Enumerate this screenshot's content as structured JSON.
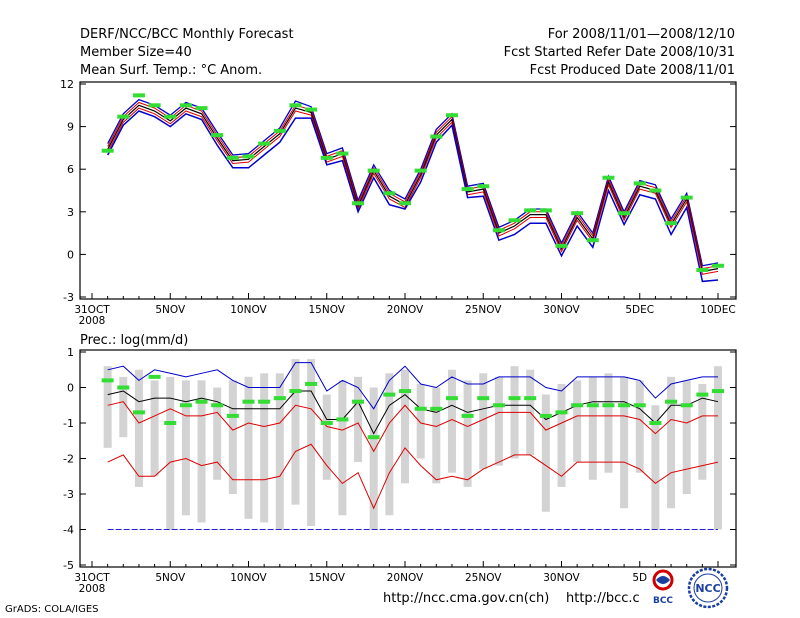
{
  "header": {
    "left": [
      "DERF/NCC/BCC Monthly Forecast",
      "Member Size=40",
      "Mean Surf. Temp.: °C Anom."
    ],
    "right": [
      "For 2008/11/01—2008/12/10",
      "Fcst Started Refer Date 2008/10/31",
      "Fcst Produced Date 2008/11/01"
    ]
  },
  "footer": {
    "credit": "GrADS: COLA/IGES",
    "url1": "http://ncc.cma.gov.cn(ch)",
    "url2": "http://bcc.c"
  },
  "logos": {
    "bcc": "BCC",
    "ncc": "NCC"
  },
  "colors": {
    "mean": "#000000",
    "blue": "#0000cc",
    "red": "#dd0000",
    "green": "#33dd33",
    "box": "#d3d3d3",
    "ref": "#2222cc"
  },
  "chart_data": [
    {
      "type": "line",
      "title": "Mean Surf. Temp.: °C Anom.",
      "x_labels": [
        "31OCT",
        "5NOV",
        "10NOV",
        "15NOV",
        "20NOV",
        "25NOV",
        "30NOV",
        "5DEC",
        "10DEC"
      ],
      "x_label_days": [
        0,
        5,
        10,
        15,
        20,
        25,
        30,
        35,
        40
      ],
      "year_label": "2008",
      "ylim": [
        -3,
        12
      ],
      "yticks": [
        "-3",
        "0",
        "3",
        "6",
        "9",
        "12"
      ],
      "x": [
        1,
        2,
        3,
        4,
        5,
        6,
        7,
        8,
        9,
        10,
        11,
        12,
        13,
        14,
        15,
        16,
        17,
        18,
        19,
        20,
        21,
        22,
        23,
        24,
        25,
        26,
        27,
        28,
        29,
        30,
        31,
        32,
        33,
        34,
        35,
        36,
        37,
        38,
        39,
        40
      ],
      "series": [
        {
          "name": "upper",
          "color": "#0000cc",
          "values": [
            7.8,
            9.9,
            10.9,
            10.5,
            9.8,
            10.7,
            10.3,
            8.6,
            7.0,
            7.1,
            8.0,
            8.9,
            10.8,
            10.4,
            7.1,
            7.5,
            3.8,
            6.3,
            4.5,
            3.9,
            6.0,
            8.8,
            9.9,
            4.8,
            5.0,
            1.9,
            2.4,
            3.2,
            3.2,
            0.8,
            3.0,
            1.5,
            5.5,
            3.0,
            5.2,
            4.9,
            2.5,
            4.3,
            -0.8,
            -0.6
          ]
        },
        {
          "name": "r1",
          "color": "#dd0000",
          "values": [
            7.6,
            9.7,
            10.7,
            10.3,
            9.6,
            10.5,
            10.1,
            8.4,
            6.8,
            6.9,
            7.8,
            8.7,
            10.5,
            10.2,
            6.9,
            7.3,
            3.6,
            6.1,
            4.3,
            3.7,
            5.8,
            8.6,
            9.7,
            4.6,
            4.8,
            1.7,
            2.2,
            3.0,
            3.0,
            0.6,
            2.8,
            1.3,
            5.3,
            2.8,
            5.0,
            4.7,
            2.3,
            4.1,
            -1.0,
            -0.8
          ]
        },
        {
          "name": "mean",
          "color": "#000000",
          "values": [
            7.4,
            9.5,
            10.5,
            10.1,
            9.4,
            10.3,
            9.9,
            8.2,
            6.6,
            6.7,
            7.6,
            8.5,
            10.3,
            10.0,
            6.7,
            7.1,
            3.4,
            5.9,
            4.1,
            3.5,
            5.6,
            8.4,
            9.5,
            4.4,
            4.6,
            1.5,
            2.0,
            2.8,
            2.8,
            0.4,
            2.6,
            1.1,
            5.1,
            2.6,
            4.8,
            4.5,
            2.1,
            3.9,
            -1.2,
            -1.0
          ]
        },
        {
          "name": "r2",
          "color": "#dd0000",
          "values": [
            7.2,
            9.3,
            10.3,
            9.9,
            9.2,
            10.1,
            9.7,
            8.0,
            6.4,
            6.5,
            7.4,
            8.3,
            10.1,
            9.8,
            6.5,
            6.9,
            3.2,
            5.7,
            3.9,
            3.3,
            5.4,
            8.2,
            9.3,
            4.2,
            4.4,
            1.3,
            1.8,
            2.6,
            2.6,
            0.2,
            2.4,
            0.9,
            4.9,
            2.4,
            4.6,
            4.3,
            1.9,
            3.7,
            -1.4,
            -1.2
          ]
        },
        {
          "name": "lower",
          "color": "#0000cc",
          "values": [
            7.0,
            9.1,
            10.1,
            9.7,
            9.0,
            9.9,
            9.5,
            7.7,
            6.1,
            6.1,
            7.0,
            7.9,
            9.6,
            9.6,
            6.3,
            6.6,
            3.0,
            5.4,
            3.5,
            3.2,
            5.1,
            7.9,
            9.1,
            4.0,
            4.1,
            1.0,
            1.4,
            2.2,
            2.2,
            -0.1,
            2.0,
            0.5,
            4.5,
            2.1,
            4.2,
            3.9,
            1.4,
            3.3,
            -1.9,
            -1.8
          ]
        },
        {
          "name": "markers",
          "color": "#33dd33",
          "values": [
            7.3,
            9.7,
            11.2,
            10.5,
            9.7,
            10.5,
            10.3,
            8.4,
            6.8,
            6.9,
            7.8,
            8.7,
            10.5,
            10.2,
            6.8,
            7.1,
            3.6,
            5.9,
            4.3,
            3.6,
            5.9,
            8.3,
            9.8,
            4.6,
            4.8,
            1.7,
            2.4,
            3.1,
            3.1,
            0.6,
            2.9,
            1.0,
            5.4,
            2.9,
            5.0,
            4.5,
            2.2,
            4.0,
            -1.1,
            -0.8
          ]
        }
      ]
    },
    {
      "type": "box",
      "title": "Prec.: log(mm/d)",
      "x_labels": [
        "31OCT",
        "5NOV",
        "10NOV",
        "15NOV",
        "20NOV",
        "25NOV",
        "30NOV",
        "5D"
      ],
      "x_label_days": [
        0,
        5,
        10,
        15,
        20,
        25,
        30,
        35
      ],
      "year_label": "2008",
      "ylim": [
        -5,
        1
      ],
      "yticks": [
        "-5",
        "-4",
        "-3",
        "-2",
        "-1",
        "0",
        "1"
      ],
      "reference_line": -4,
      "x": [
        1,
        2,
        3,
        4,
        5,
        6,
        7,
        8,
        9,
        10,
        11,
        12,
        13,
        14,
        15,
        16,
        17,
        18,
        19,
        20,
        21,
        22,
        23,
        24,
        25,
        26,
        27,
        28,
        29,
        30,
        31,
        32,
        33,
        34,
        35,
        36,
        37,
        38,
        39,
        40
      ],
      "box_top": [
        0.6,
        0.3,
        0.5,
        0.2,
        0.3,
        0.2,
        0.2,
        0.0,
        0.2,
        0.3,
        0.4,
        0.4,
        0.8,
        0.8,
        -0.2,
        0.2,
        0.3,
        0.0,
        0.4,
        0.5,
        0.1,
        0.0,
        0.5,
        0.2,
        0.4,
        0.3,
        0.6,
        0.5,
        -0.2,
        0.1,
        0.2,
        0.3,
        0.4,
        0.3,
        0.2,
        -0.5,
        0.3,
        0.2,
        0.1,
        0.6
      ],
      "box_bottom": [
        -1.7,
        -1.4,
        -2.8,
        -2.5,
        -4.0,
        -3.6,
        -3.8,
        -2.6,
        -3.0,
        -3.7,
        -3.8,
        -4.0,
        -3.3,
        -3.9,
        -2.6,
        -3.6,
        -2.1,
        -4.0,
        -3.6,
        -2.7,
        -2.0,
        -2.7,
        -2.4,
        -2.8,
        -2.3,
        -2.2,
        -2.0,
        -1.9,
        -3.5,
        -2.8,
        -2.1,
        -2.6,
        -2.4,
        -3.4,
        -2.4,
        -4.0,
        -3.4,
        -3.0,
        -2.6,
        -4.0
      ],
      "series": [
        {
          "name": "upper",
          "color": "#0000cc",
          "values": [
            0.5,
            0.6,
            0.2,
            0.5,
            0.4,
            0.3,
            0.4,
            0.5,
            0.2,
            0.0,
            0.0,
            0.0,
            0.7,
            0.7,
            -0.1,
            0.2,
            0.0,
            -0.6,
            0.2,
            0.6,
            0.1,
            0.0,
            0.3,
            0.1,
            0.1,
            0.3,
            0.3,
            0.3,
            0.0,
            -0.1,
            0.3,
            0.3,
            0.3,
            0.3,
            0.2,
            -0.3,
            0.1,
            0.2,
            0.3,
            0.3
          ]
        },
        {
          "name": "mean",
          "color": "#000000",
          "values": [
            -0.2,
            -0.1,
            -0.4,
            -0.3,
            -0.3,
            -0.4,
            -0.3,
            -0.4,
            -0.6,
            -0.6,
            -0.6,
            -0.6,
            -0.1,
            -0.1,
            -0.9,
            -0.9,
            -0.4,
            -1.3,
            -0.5,
            -0.2,
            -0.6,
            -0.7,
            -0.5,
            -0.7,
            -0.6,
            -0.5,
            -0.5,
            -0.5,
            -0.9,
            -0.7,
            -0.5,
            -0.4,
            -0.4,
            -0.4,
            -0.6,
            -1.0,
            -0.5,
            -0.5,
            -0.3,
            -0.4
          ]
        },
        {
          "name": "r1",
          "color": "#dd0000",
          "values": [
            -0.5,
            -0.4,
            -1.0,
            -0.8,
            -0.6,
            -0.8,
            -0.8,
            -0.7,
            -1.2,
            -1.0,
            -1.1,
            -1.0,
            -0.5,
            -0.6,
            -1.1,
            -1.2,
            -1.0,
            -1.8,
            -1.0,
            -0.5,
            -1.0,
            -1.1,
            -0.9,
            -1.1,
            -0.9,
            -0.7,
            -0.7,
            -0.7,
            -1.2,
            -1.0,
            -0.8,
            -0.8,
            -0.8,
            -0.8,
            -0.9,
            -1.3,
            -0.9,
            -1.0,
            -0.8,
            -0.8
          ]
        },
        {
          "name": "r2",
          "color": "#dd0000",
          "values": [
            -2.1,
            -1.9,
            -2.5,
            -2.5,
            -2.1,
            -2.0,
            -2.2,
            -2.1,
            -2.6,
            -2.6,
            -2.6,
            -2.5,
            -1.8,
            -1.6,
            -2.2,
            -2.7,
            -2.4,
            -3.4,
            -2.4,
            -1.7,
            -2.2,
            -2.6,
            -2.5,
            -2.6,
            -2.3,
            -2.1,
            -1.9,
            -1.9,
            -2.2,
            -2.5,
            -2.1,
            -2.1,
            -2.1,
            -2.1,
            -2.3,
            -2.7,
            -2.4,
            -2.3,
            -2.2,
            -2.1
          ]
        },
        {
          "name": "markers",
          "color": "#33dd33",
          "values": [
            0.2,
            0.0,
            -0.7,
            0.3,
            -1.0,
            -0.5,
            -0.4,
            -0.5,
            -0.8,
            -0.4,
            -0.4,
            -0.3,
            -0.1,
            0.1,
            -1.0,
            -0.9,
            -0.4,
            -1.4,
            -0.2,
            -0.1,
            -0.6,
            -0.6,
            -0.3,
            -0.8,
            -0.3,
            -0.5,
            -0.3,
            -0.3,
            -0.8,
            -0.7,
            -0.5,
            -0.5,
            -0.5,
            -0.5,
            -0.5,
            -1.0,
            -0.4,
            -0.5,
            -0.2,
            -0.1
          ]
        }
      ]
    }
  ]
}
